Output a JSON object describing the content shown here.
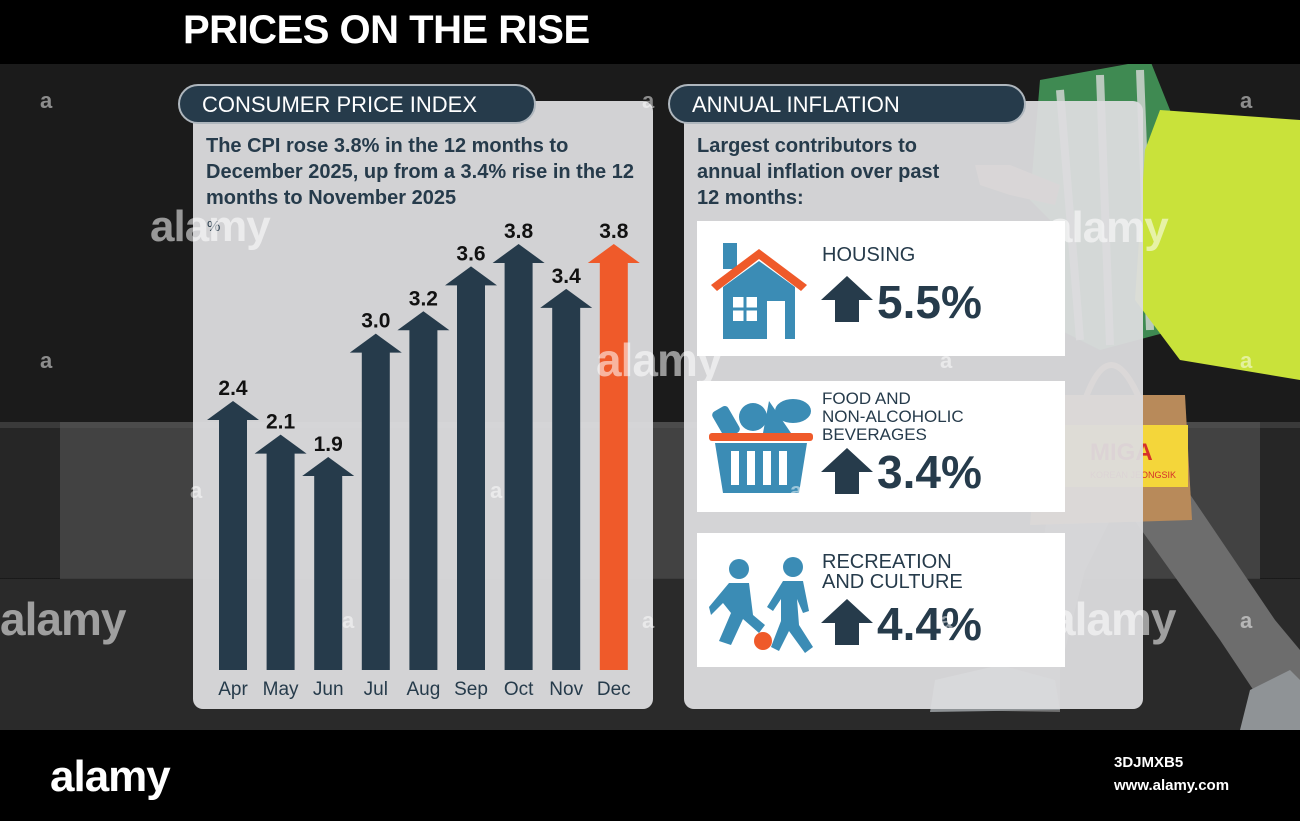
{
  "page": {
    "title": "PRICES ON THE RISE",
    "watermark_text": "alamy",
    "watermark_mark": "a",
    "image_id": "3DJMXB5",
    "site_url": "www.alamy.com"
  },
  "cpi_panel": {
    "header": "CONSUMER PRICE INDEX",
    "description": "The CPI rose 3.8% in the 12 months to December 2025, up from a 3.4% rise in the 12 months to November 2025",
    "unit": "%"
  },
  "inflation_panel": {
    "header": "ANNUAL INFLATION",
    "description": "Largest contributors to annual inflation over past 12 months:",
    "items": [
      {
        "label_lines": [
          "HOUSING"
        ],
        "value": "5.5%",
        "icon": "house-icon"
      },
      {
        "label_lines": [
          "FOOD AND",
          "NON-ALCOHOLIC",
          "BEVERAGES"
        ],
        "value": "3.4%",
        "icon": "basket-icon"
      },
      {
        "label_lines": [
          "RECREATION",
          "AND CULTURE"
        ],
        "value": "4.4%",
        "icon": "people-playing-icon"
      }
    ]
  },
  "bag_text": {
    "brand": "MIGA",
    "subtitle": "KOREAN JEONGSIK"
  },
  "colors": {
    "navy": "#263b4b",
    "highlight": "#ef5a2a",
    "house_blue": "#3b8cb5",
    "house_roof": "#ef5a2a",
    "panel": "#dcdcde"
  },
  "chart_data": {
    "type": "bar",
    "style": "arrow-bars",
    "categories": [
      "Apr",
      "May",
      "Jun",
      "Jul",
      "Aug",
      "Sep",
      "Oct",
      "Nov",
      "Dec"
    ],
    "values": [
      2.4,
      2.1,
      1.9,
      3.0,
      3.2,
      3.6,
      3.8,
      3.4,
      3.8
    ],
    "value_labels": [
      "2.4",
      "2.1",
      "1.9",
      "3.0",
      "3.2",
      "3.6",
      "3.8",
      "3.4",
      "3.8"
    ],
    "highlight_category": "Dec",
    "ylabel": "%",
    "ylim": [
      0,
      3.8
    ],
    "grid": false,
    "legend": "none"
  }
}
